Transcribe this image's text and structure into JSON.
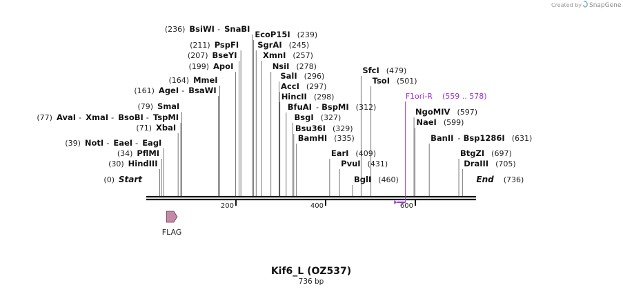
{
  "credit": {
    "created_by": "Created by",
    "brand": "SnapGene"
  },
  "title": "Kif6_L (OZ537)",
  "length_label": "736 bp",
  "sequence_length": 736,
  "map_start": 0,
  "map_end": 736,
  "ticks": [
    {
      "value": 200,
      "label": "200"
    },
    {
      "value": 400,
      "label": "400"
    },
    {
      "value": 600,
      "label": "600"
    }
  ],
  "start_label": {
    "name": "Start",
    "pos": "(0)"
  },
  "end_label": {
    "name": "End",
    "pos": "(736)"
  },
  "sites": [
    {
      "names": [
        "HindIII"
      ],
      "pos_label": "(30)",
      "pos": 30
    },
    {
      "names": [
        "PflMI"
      ],
      "pos_label": "(34)",
      "pos": 34
    },
    {
      "names": [
        "NotI",
        "EaeI",
        "EagI"
      ],
      "pos_label": "(39)",
      "pos": 39
    },
    {
      "names": [
        "XbaI"
      ],
      "pos_label": "(71)",
      "pos": 71
    },
    {
      "names": [
        "AvaI",
        "XmaI",
        "BsoBI",
        "TspMI"
      ],
      "pos_label": "(77)",
      "pos": 77
    },
    {
      "names": [
        "SmaI"
      ],
      "pos_label": "(79)",
      "pos": 79
    },
    {
      "names": [
        "AgeI",
        "BsaWI"
      ],
      "pos_label": "(161)",
      "pos": 161
    },
    {
      "names": [
        "MmeI"
      ],
      "pos_label": "(164)",
      "pos": 164
    },
    {
      "names": [
        "ApoI"
      ],
      "pos_label": "(199)",
      "pos": 199
    },
    {
      "names": [
        "BseYI"
      ],
      "pos_label": "(207)",
      "pos": 207
    },
    {
      "names": [
        "PspFI"
      ],
      "pos_label": "(211)",
      "pos": 211
    },
    {
      "names": [
        "BsiWI",
        "SnaBI"
      ],
      "pos_label": "(236)",
      "pos": 236
    },
    {
      "names": [
        "EcoP15I"
      ],
      "pos_label": "(239)",
      "pos": 239
    },
    {
      "names": [
        "SgrAI"
      ],
      "pos_label": "(245)",
      "pos": 245
    },
    {
      "names": [
        "XmnI"
      ],
      "pos_label": "(257)",
      "pos": 257
    },
    {
      "names": [
        "NsiI"
      ],
      "pos_label": "(278)",
      "pos": 278
    },
    {
      "names": [
        "SalI"
      ],
      "pos_label": "(296)",
      "pos": 296
    },
    {
      "names": [
        "AccI"
      ],
      "pos_label": "(297)",
      "pos": 297
    },
    {
      "names": [
        "HincII"
      ],
      "pos_label": "(298)",
      "pos": 298
    },
    {
      "names": [
        "BfuAI",
        "BspMI"
      ],
      "pos_label": "(312)",
      "pos": 312
    },
    {
      "names": [
        "BsgI"
      ],
      "pos_label": "(327)",
      "pos": 327
    },
    {
      "names": [
        "Bsu36I"
      ],
      "pos_label": "(329)",
      "pos": 329
    },
    {
      "names": [
        "BamHI"
      ],
      "pos_label": "(335)",
      "pos": 335
    },
    {
      "names": [
        "EarI"
      ],
      "pos_label": "(409)",
      "pos": 409
    },
    {
      "names": [
        "PvuI"
      ],
      "pos_label": "(431)",
      "pos": 431
    },
    {
      "names": [
        "BglI"
      ],
      "pos_label": "(460)",
      "pos": 460
    },
    {
      "names": [
        "SfcI"
      ],
      "pos_label": "(479)",
      "pos": 479
    },
    {
      "names": [
        "TsoI"
      ],
      "pos_label": "(501)",
      "pos": 501
    },
    {
      "names": [
        "NgoMIV"
      ],
      "pos_label": "(597)",
      "pos": 597
    },
    {
      "names": [
        "NaeI"
      ],
      "pos_label": "(599)",
      "pos": 599
    },
    {
      "names": [
        "BanII",
        "Bsp1286I"
      ],
      "pos_label": "(631)",
      "pos": 631
    },
    {
      "names": [
        "BtgZI"
      ],
      "pos_label": "(697)",
      "pos": 697
    },
    {
      "names": [
        "DraIII"
      ],
      "pos_label": "(705)",
      "pos": 705
    }
  ],
  "primer": {
    "name": "F1ori-R",
    "range": "(559 .. 578)",
    "start": 559,
    "end": 578,
    "color": "#9b30d9"
  },
  "feature": {
    "name": "FLAG",
    "start": 45,
    "end": 69,
    "color": "#c48aa8"
  }
}
